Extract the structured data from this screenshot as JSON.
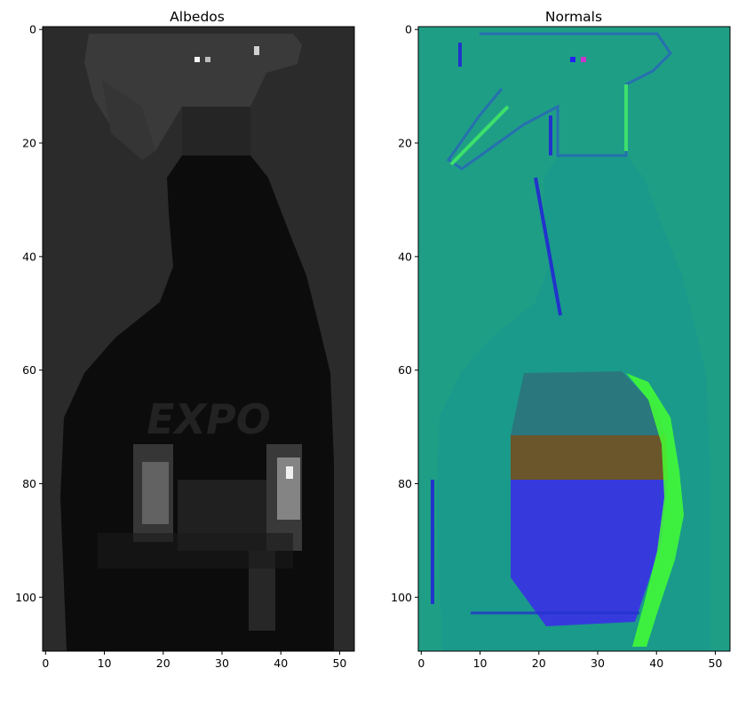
{
  "chart_data": [
    {
      "type": "image",
      "title": "Albedos",
      "image_size": [
        53,
        110
      ],
      "xlim": [
        0,
        53
      ],
      "ylim": [
        110,
        0
      ],
      "xticks": [
        0,
        10,
        20,
        30,
        40,
        50
      ],
      "yticks": [
        0,
        20,
        40,
        60,
        80,
        100
      ],
      "xtick_labels": [
        "0",
        "10",
        "20",
        "30",
        "40",
        "50"
      ],
      "ytick_labels": [
        "0",
        "20",
        "40",
        "60",
        "80",
        "100"
      ],
      "colormap": "gray",
      "background_color": "#2b2b2b",
      "object_color": "#0c0c0c",
      "highlight_color": "#e6e6e6",
      "label_text_in_image": "EXPO"
    },
    {
      "type": "image",
      "title": "Normals",
      "image_size": [
        53,
        110
      ],
      "xlim": [
        0,
        53
      ],
      "ylim": [
        110,
        0
      ],
      "xticks": [
        0,
        10,
        20,
        30,
        40,
        50
      ],
      "yticks": [
        0,
        20,
        40,
        60,
        80,
        100
      ],
      "xtick_labels": [
        "0",
        "10",
        "20",
        "30",
        "40",
        "50"
      ],
      "ytick_labels": [
        "0",
        "20",
        "40",
        "60",
        "80",
        "100"
      ],
      "colormap": "rgb",
      "background_color": "#1f9e86",
      "edge_color": "#2233cc",
      "highlight_color": "#44ff33",
      "label_top_color": "#7a4a1a",
      "label_bottom_color": "#3a30e6"
    }
  ]
}
